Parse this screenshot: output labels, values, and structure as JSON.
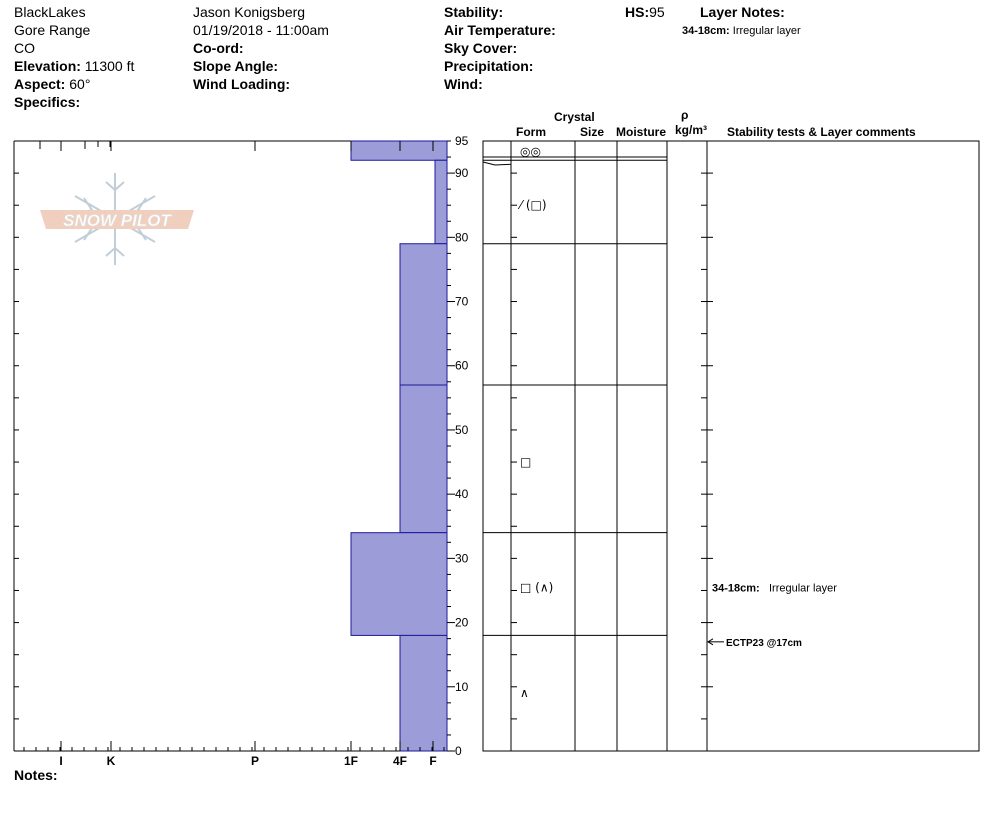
{
  "header": {
    "location": "BlackLakes",
    "range": "Gore Range",
    "state": "CO",
    "elevation_label": "Elevation:",
    "elevation_value": "11300 ft",
    "aspect_label": "Aspect:",
    "aspect_value": "60°",
    "specifics_label": "Specifics:",
    "observer": "Jason Konigsberg",
    "datetime": "01/19/2018 - 11:00am",
    "coord_label": "Co-ord:",
    "slope_label": "Slope Angle:",
    "wind_loading_label": "Wind Loading:",
    "stability_label": "Stability:",
    "air_temp_label": "Air Temperature:",
    "sky_label": "Sky Cover:",
    "precip_label": "Precipitation:",
    "wind_label": "Wind:",
    "hs_label": "HS:",
    "hs_value": "95",
    "layer_notes_label": "Layer Notes:",
    "layer_note_depth": "34-18cm:",
    "layer_note_text": "Irregular layer"
  },
  "columns": {
    "crystal": "Crystal",
    "form": "Form",
    "size": "Size",
    "moisture": "Moisture",
    "rho": "ρ",
    "density_unit": "kg/m³",
    "stability": "Stability tests & Layer comments"
  },
  "notes_label": "Notes:",
  "logo_text": "SNOW PILOT",
  "colors": {
    "layer_fill": "#9c9cd8",
    "layer_stroke": "#1a1a9c"
  },
  "chart_data": {
    "type": "snow-profile",
    "hs_cm": 95,
    "ylim": [
      0,
      95
    ],
    "y_ticks": [
      0,
      10,
      20,
      30,
      40,
      50,
      60,
      70,
      80,
      90,
      95
    ],
    "hardness_scale": [
      "I",
      "K",
      "P",
      "1F",
      "4F",
      "F"
    ],
    "hardness_ticks": [
      {
        "label": "I",
        "value": 5
      },
      {
        "label": "K",
        "value": 4
      },
      {
        "label": "P",
        "value": 3
      },
      {
        "label": "1F",
        "value": 2
      },
      {
        "label": "4F",
        "value": 1
      },
      {
        "label": "F",
        "value": 0.3
      }
    ],
    "layers": [
      {
        "top": 95,
        "bottom": 92,
        "hardness": 2,
        "form": "◎◎"
      },
      {
        "top": 92,
        "bottom": 79,
        "hardness": 0.25,
        "form": "⁄ (□)"
      },
      {
        "top": 79,
        "bottom": 57,
        "hardness": 1,
        "form": ""
      },
      {
        "top": 57,
        "bottom": 34,
        "hardness": 1,
        "form": "□"
      },
      {
        "top": 34,
        "bottom": 18,
        "hardness": 2,
        "form": "□ (∧)"
      },
      {
        "top": 18,
        "bottom": 0,
        "hardness": 1,
        "form": "∧"
      }
    ],
    "layer_comments": [
      {
        "depth": 25.5,
        "label": "34-18cm:",
        "text": "Irregular layer"
      }
    ],
    "stability_tests": [
      {
        "depth": 17,
        "text": "ECTP23 @17cm"
      }
    ]
  }
}
